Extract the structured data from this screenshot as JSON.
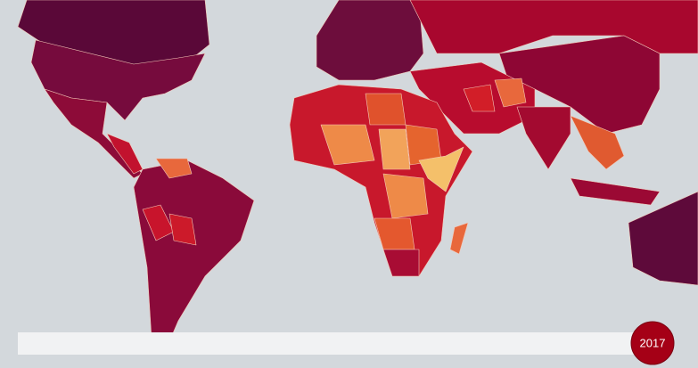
{
  "timeline": {
    "year": "2017"
  }
}
